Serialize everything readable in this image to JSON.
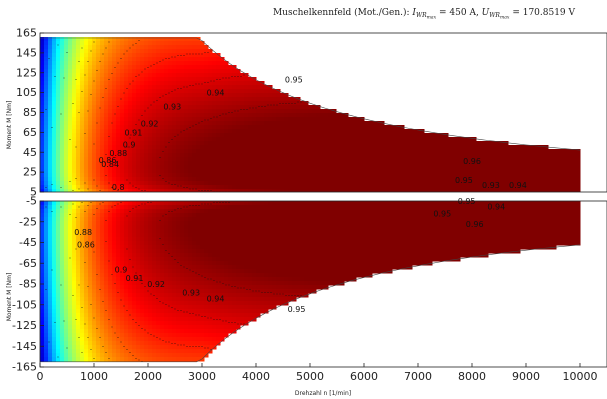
{
  "chart_data": {
    "type": "heatmap",
    "title": "Muschelkennfeld (Mot./Gen.): I_WR_max = 450 A, U_WR_max = 170.8519 V",
    "title_prefix": "Muschelkennfeld (Mot./Gen.): ",
    "title_i_symbol": "I",
    "title_i_sub": "WR",
    "title_i_subsub": "max",
    "title_i_value": " = 450 A, ",
    "title_u_symbol": "U",
    "title_u_sub": "WR",
    "title_u_subsub": "max",
    "title_u_value": " = 170.8519 V",
    "xlabel": "Drehzahl n [1/min]",
    "ylabel_top": "Moment M [Nm]",
    "ylabel_bottom": "Moment M [Nm]",
    "xlim": [
      0,
      10500
    ],
    "x_ticks": [
      "0",
      "1000",
      "2000",
      "3000",
      "4000",
      "5000",
      "6000",
      "7000",
      "8000",
      "9000",
      "10000"
    ],
    "top_panel": {
      "ylim": [
        5,
        165
      ],
      "y_ticks": [
        "5",
        "25",
        "45",
        "65",
        "85",
        "105",
        "125",
        "145",
        "165"
      ]
    },
    "bottom_panel": {
      "ylim": [
        -165,
        -5
      ],
      "y_ticks": [
        "-165",
        "-145",
        "-125",
        "-105",
        "-85",
        "-65",
        "-45",
        "-25",
        "-5"
      ]
    },
    "operating_limit": {
      "base_speed": 2950,
      "max_torque": 160,
      "max_speed": 10000,
      "torque_at_max_speed": 40
    },
    "contour_levels": [
      0.8,
      0.84,
      0.86,
      0.88,
      0.9,
      0.91,
      0.92,
      0.93,
      0.94,
      0.95,
      0.96
    ],
    "contour_labels_top": [
      {
        "text": "0.94",
        "n": 3250,
        "m": 102
      },
      {
        "text": "0.93",
        "n": 2450,
        "m": 88
      },
      {
        "text": "0.92",
        "n": 2030,
        "m": 71
      },
      {
        "text": "0.91",
        "n": 1730,
        "m": 62
      },
      {
        "text": "0.9",
        "n": 1650,
        "m": 50
      },
      {
        "text": "0.88",
        "n": 1450,
        "m": 41
      },
      {
        "text": "0.86",
        "n": 1250,
        "m": 34
      },
      {
        "text": "0.84",
        "n": 1300,
        "m": 30
      },
      {
        "text": "0.8",
        "n": 1450,
        "m": 7
      },
      {
        "text": "0.95",
        "n": 4700,
        "m": 115
      },
      {
        "text": "0.96",
        "n": 8000,
        "m": 33
      },
      {
        "text": "0.95",
        "n": 7850,
        "m": 14
      },
      {
        "text": "0.93",
        "n": 8350,
        "m": 9
      },
      {
        "text": "0.94",
        "n": 8850,
        "m": 9
      }
    ],
    "contour_labels_bottom": [
      {
        "text": "0.95",
        "n": 7900,
        "m": -8
      },
      {
        "text": "0.94",
        "n": 8450,
        "m": -13
      },
      {
        "text": "0.95",
        "n": 7450,
        "m": -20
      },
      {
        "text": "0.96",
        "n": 8050,
        "m": -30
      },
      {
        "text": "0.88",
        "n": 800,
        "m": -38
      },
      {
        "text": "0.86",
        "n": 850,
        "m": -50
      },
      {
        "text": "0.9",
        "n": 1500,
        "m": -74
      },
      {
        "text": "0.91",
        "n": 1750,
        "m": -82
      },
      {
        "text": "0.92",
        "n": 2150,
        "m": -88
      },
      {
        "text": "0.93",
        "n": 2800,
        "m": -96
      },
      {
        "text": "0.94",
        "n": 3250,
        "m": -102
      },
      {
        "text": "0.95",
        "n": 4750,
        "m": -112
      }
    ],
    "colormap": "jet",
    "grid": false
  }
}
